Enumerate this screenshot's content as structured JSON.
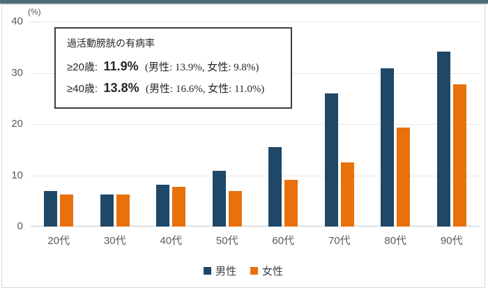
{
  "window": {
    "top_strip_color": "#4e6a72"
  },
  "annotation": {
    "title": "過活動膀胱の有病率",
    "line1": {
      "label": "≥20歳:",
      "value": "11.9%",
      "detail": "(男性: 13.9%, 女性: 9.8%)"
    },
    "line2": {
      "label": "≥40歳:",
      "value": "13.8%",
      "detail": "(男性: 16.6%, 女性: 11.0%)"
    }
  },
  "chart_data": {
    "type": "bar",
    "title": "",
    "unit_label": "(%)",
    "categories": [
      "20代",
      "30代",
      "40代",
      "50代",
      "60代",
      "70代",
      "80代",
      "90代"
    ],
    "series": [
      {
        "name": "男性",
        "color": "#1f4767",
        "values": [
          7.0,
          6.3,
          8.1,
          10.9,
          15.5,
          26.0,
          30.9,
          34.2
        ]
      },
      {
        "name": "女性",
        "color": "#e8710c",
        "values": [
          6.2,
          6.2,
          7.7,
          7.0,
          9.1,
          12.5,
          19.3,
          27.7
        ]
      }
    ],
    "xlabel": "",
    "ylabel": "(%)",
    "ylim": [
      0,
      40
    ],
    "y_ticks": [
      0,
      10,
      20,
      30,
      40
    ],
    "grid": true,
    "legend_position": "bottom"
  }
}
